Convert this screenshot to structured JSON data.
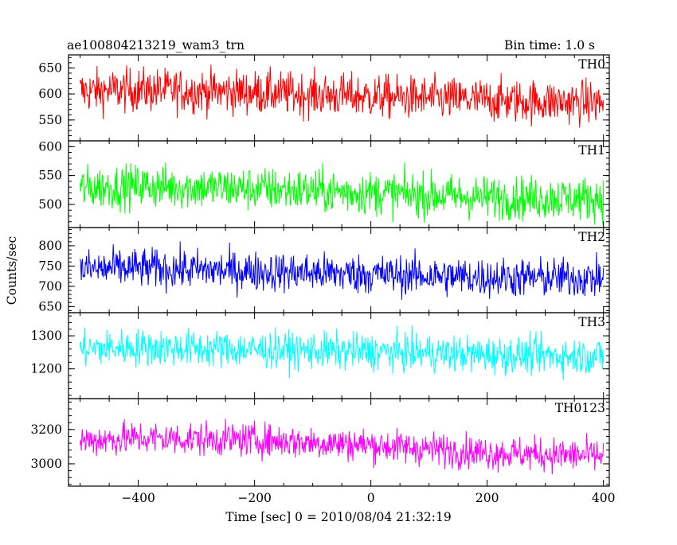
{
  "header": {
    "title": "ae100804213219_wam3_trn",
    "bin_time": "Bin time: 1.0 s"
  },
  "chart_data": {
    "type": "line",
    "title": "ae100804213219_wam3_trn",
    "xlabel": "Time [sec] 0 = 2010/08/04 21:32:19",
    "ylabel": "Counts/sec",
    "xlim": [
      -520,
      410
    ],
    "x_ticks": [
      -400,
      -200,
      0,
      200,
      400
    ],
    "x_tick_labels": [
      "−400",
      "−200",
      "0",
      "200",
      "400"
    ],
    "x_range": [
      -500,
      400
    ],
    "grid": false,
    "panels": [
      {
        "name": "TH0",
        "color": "#ff0000",
        "ylim": [
          510,
          675
        ],
        "y_ticks": [
          550,
          600,
          650
        ],
        "trend": {
          "x": [
            -500,
            -400,
            -200,
            0,
            200,
            400
          ],
          "y": [
            605,
            608,
            603,
            595,
            588,
            583
          ]
        },
        "spread": 30
      },
      {
        "name": "TH1",
        "color": "#00ff00",
        "ylim": [
          460,
          610
        ],
        "y_ticks": [
          500,
          550,
          600
        ],
        "trend": {
          "x": [
            -500,
            -400,
            -200,
            0,
            200,
            400
          ],
          "y": [
            528,
            532,
            527,
            520,
            512,
            510
          ]
        },
        "spread": 27
      },
      {
        "name": "TH2",
        "color": "#0000ff",
        "ylim": [
          635,
          845
        ],
        "y_ticks": [
          650,
          700,
          750,
          800
        ],
        "trend": {
          "x": [
            -500,
            -400,
            -200,
            0,
            200,
            400
          ],
          "y": [
            742,
            745,
            737,
            730,
            722,
            720
          ]
        },
        "spread": 35
      },
      {
        "name": "TH3",
        "color": "#00ffff",
        "ylim": [
          1110,
          1370
        ],
        "y_ticks": [
          1200,
          1300
        ],
        "trend": {
          "x": [
            -500,
            -400,
            -200,
            0,
            200,
            400
          ],
          "y": [
            1260,
            1265,
            1258,
            1252,
            1243,
            1238
          ]
        },
        "spread": 40
      },
      {
        "name": "TH0123",
        "color": "#ff00ff",
        "ylim": [
          2870,
          3380
        ],
        "y_ticks": [
          3000,
          3200
        ],
        "trend": {
          "x": [
            -500,
            -400,
            -200,
            0,
            200,
            400
          ],
          "y": [
            3135,
            3150,
            3140,
            3110,
            3065,
            3045
          ]
        },
        "spread": 70
      }
    ]
  }
}
